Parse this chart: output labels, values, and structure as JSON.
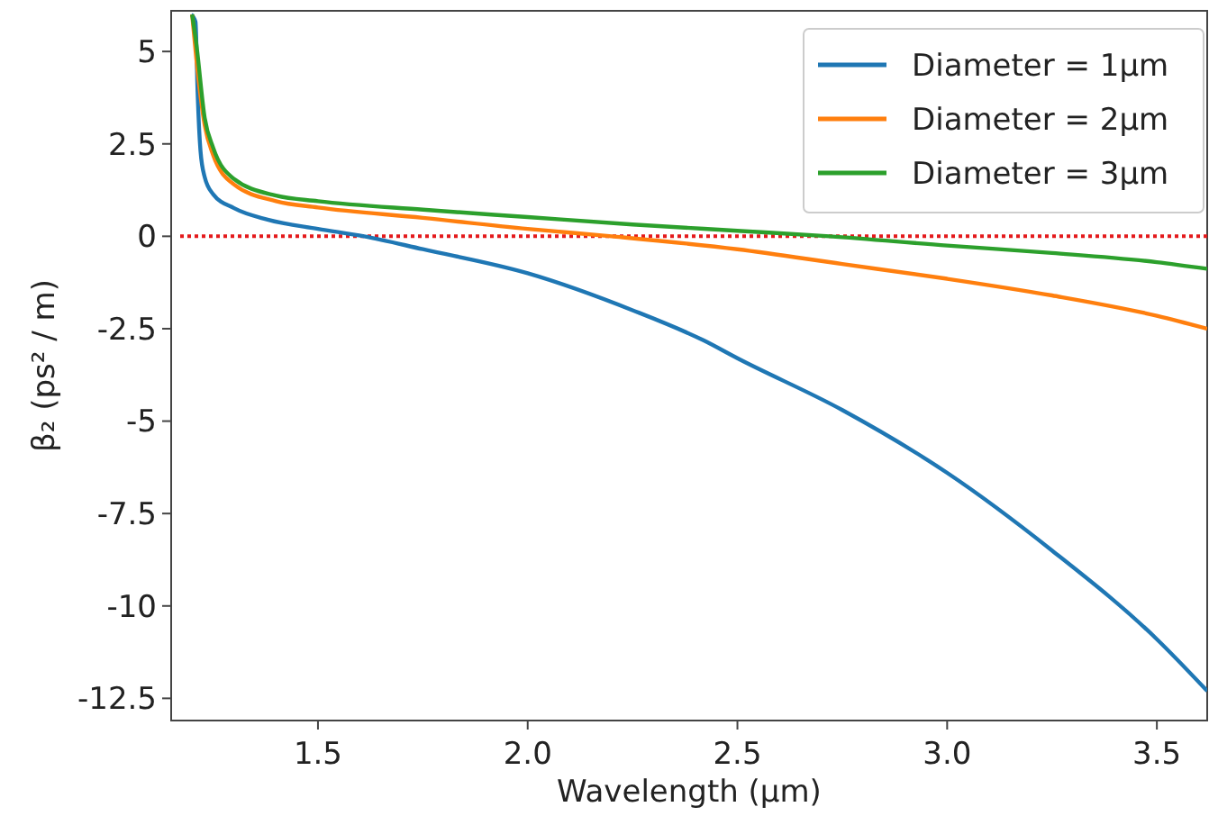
{
  "chart_data": {
    "type": "line",
    "xlabel": "Wavelength (μm)",
    "ylabel": "β₂ (ps² / m)",
    "xlim": [
      1.15,
      3.62
    ],
    "ylim": [
      -13.1,
      6.1
    ],
    "xticks": [
      1.5,
      {
        "value": 2,
        "label": "2.0"
      },
      2.5,
      {
        "value": 3,
        "label": "3.0"
      },
      3.5
    ],
    "yticks": [
      5,
      2.5,
      0,
      -2.5,
      -5,
      -7.5,
      -10,
      -12.5
    ],
    "grid": false,
    "legend": "top right",
    "line_style": "solid",
    "marker": "none",
    "ref_lines": [
      {
        "axis": "y",
        "value": 0,
        "color": "#e41a1c",
        "line_style": "dotted"
      }
    ],
    "series": [
      {
        "name": "Diameter = 1μm",
        "color": "#1f77b4",
        "x": [
          1.198,
          1.208,
          1.213,
          1.22,
          1.23,
          1.25,
          1.3,
          1.38,
          1.5,
          1.61,
          1.75,
          2,
          2.25,
          2.42,
          2.5,
          2.75,
          3,
          3.25,
          3.5,
          3.62
        ],
        "values": [
          6.0,
          5.8,
          3.9,
          2.3,
          1.6,
          1.14,
          0.76,
          0.45,
          0.2,
          0,
          -0.35,
          -1.0,
          -2.0,
          -2.82,
          -3.3,
          -4.7,
          -6.4,
          -8.5,
          -10.9,
          -12.3
        ]
      },
      {
        "name": "Diameter = 2μm",
        "color": "#ff7f0e",
        "x": [
          1.2,
          1.21,
          1.23,
          1.25,
          1.3,
          1.4,
          1.5,
          1.75,
          2,
          2.2,
          2.5,
          2.75,
          3,
          3.25,
          3.5,
          3.62
        ],
        "values": [
          6.0,
          4.8,
          3.0,
          2.2,
          1.4,
          0.95,
          0.78,
          0.5,
          0.2,
          0,
          -0.35,
          -0.75,
          -1.15,
          -1.6,
          -2.15,
          -2.5
        ]
      },
      {
        "name": "Diameter = 3μm",
        "color": "#2ca02c",
        "x": [
          1.2,
          1.21,
          1.23,
          1.25,
          1.3,
          1.4,
          1.5,
          1.75,
          2,
          2.25,
          2.5,
          2.72,
          3,
          3.25,
          3.5,
          3.62
        ],
        "values": [
          6.0,
          5.2,
          3.2,
          2.4,
          1.55,
          1.1,
          0.95,
          0.72,
          0.52,
          0.32,
          0.15,
          0,
          -0.25,
          -0.45,
          -0.7,
          -0.88
        ]
      }
    ]
  }
}
